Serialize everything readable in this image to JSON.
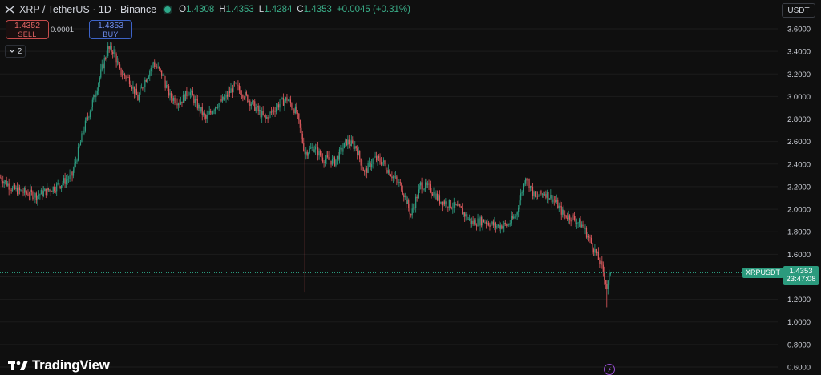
{
  "header": {
    "symbol": "XRP / TetherUS · 1D · Binance",
    "open_label": "O",
    "open": "1.4308",
    "high_label": "H",
    "high": "1.4353",
    "low_label": "L",
    "low": "1.4284",
    "close_label": "C",
    "close": "1.4353",
    "change": "+0.0045 (+0.31%)"
  },
  "trade": {
    "sell_price": "1.4352",
    "sell_label": "SELL",
    "buy_price": "1.4353",
    "buy_label": "BUY",
    "spread": "0.0001"
  },
  "indicators": {
    "count": "2",
    "icon": "chevron-down-icon"
  },
  "currency": {
    "label": "USDT",
    "icon": "chevron-down-icon"
  },
  "last_price": {
    "symbol": "XRPUSDT",
    "price": "1.4353",
    "countdown": "23:47:08"
  },
  "branding": {
    "name": "TradingView"
  },
  "colors": {
    "up": "#2e9f83",
    "down": "#e05a5e",
    "background": "#0f0f0f",
    "axis_text": "#d1d4dc",
    "grid": "#1c1c1c"
  },
  "chart_data": {
    "type": "candlestick",
    "y_axis": {
      "ticks": [
        "3.6000",
        "3.4000",
        "3.2000",
        "3.0000",
        "2.8000",
        "2.6000",
        "2.4000",
        "2.2000",
        "2.0000",
        "1.8000",
        "1.6000",
        "1.4000",
        "1.2000",
        "1.0000",
        "0.8000",
        "0.6000"
      ],
      "range": [
        0.6,
        3.6
      ]
    },
    "current_price": 1.4353,
    "anchors": [
      [
        0,
        2.28
      ],
      [
        10,
        2.18
      ],
      [
        20,
        2.15
      ],
      [
        30,
        2.12
      ],
      [
        40,
        2.17
      ],
      [
        50,
        2.22
      ],
      [
        60,
        2.3
      ],
      [
        70,
        2.72
      ],
      [
        80,
        3.05
      ],
      [
        85,
        3.25
      ],
      [
        90,
        3.42
      ],
      [
        95,
        3.4
      ],
      [
        100,
        3.22
      ],
      [
        108,
        3.15
      ],
      [
        115,
        2.98
      ],
      [
        120,
        3.12
      ],
      [
        128,
        3.3
      ],
      [
        135,
        3.2
      ],
      [
        142,
        3.0
      ],
      [
        150,
        2.95
      ],
      [
        158,
        3.05
      ],
      [
        165,
        2.92
      ],
      [
        172,
        2.8
      ],
      [
        180,
        2.92
      ],
      [
        188,
        2.98
      ],
      [
        196,
        3.1
      ],
      [
        204,
        3.02
      ],
      [
        212,
        2.92
      ],
      [
        222,
        2.8
      ],
      [
        232,
        2.92
      ],
      [
        240,
        2.98
      ],
      [
        248,
        2.86
      ],
      [
        255,
        2.5
      ],
      [
        263,
        2.55
      ],
      [
        270,
        2.45
      ],
      [
        280,
        2.42
      ],
      [
        290,
        2.6
      ],
      [
        298,
        2.55
      ],
      [
        305,
        2.32
      ],
      [
        313,
        2.45
      ],
      [
        320,
        2.42
      ],
      [
        328,
        2.3
      ],
      [
        336,
        2.2
      ],
      [
        344,
        1.95
      ],
      [
        352,
        2.22
      ],
      [
        360,
        2.18
      ],
      [
        368,
        2.08
      ],
      [
        375,
        2.05
      ],
      [
        385,
        2.0
      ],
      [
        395,
        1.88
      ],
      [
        405,
        1.9
      ],
      [
        415,
        1.85
      ],
      [
        425,
        1.86
      ],
      [
        432,
        1.95
      ],
      [
        440,
        2.3
      ],
      [
        448,
        2.1
      ],
      [
        456,
        2.15
      ],
      [
        464,
        2.08
      ],
      [
        472,
        1.95
      ],
      [
        480,
        1.92
      ],
      [
        488,
        1.85
      ],
      [
        495,
        1.7
      ],
      [
        500,
        1.58
      ],
      [
        505,
        1.45
      ],
      [
        508,
        1.3
      ],
      [
        511,
        1.43
      ]
    ]
  }
}
